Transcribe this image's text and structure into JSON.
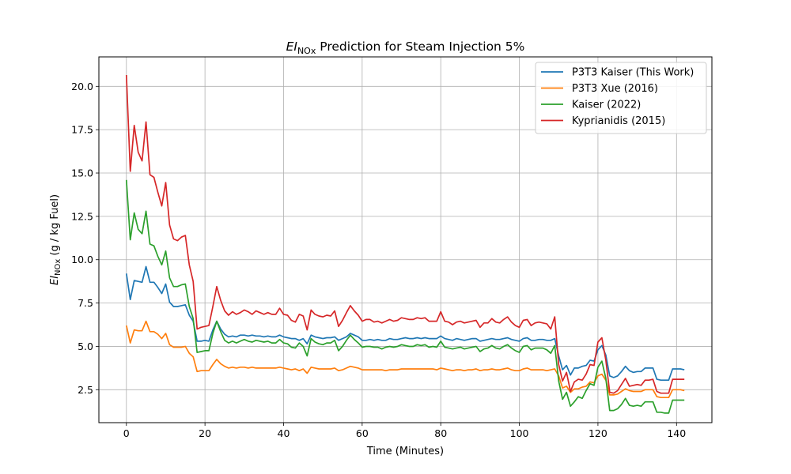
{
  "chart_data": {
    "type": "line",
    "title_prefix": "EI",
    "title_sub": "NOx",
    "title_suffix": " Prediction for Steam Injection 5%",
    "xlabel": "Time (Minutes)",
    "ylabel_prefix": "EI",
    "ylabel_sub": "NOx",
    "ylabel_suffix": " (g / kg Fuel)",
    "xlim": [
      -7,
      149
    ],
    "ylim": [
      0.6,
      21.7
    ],
    "x_ticks": [
      0,
      20,
      40,
      60,
      80,
      100,
      120,
      140
    ],
    "x_tick_labels": [
      "0",
      "20",
      "40",
      "60",
      "80",
      "100",
      "120",
      "140"
    ],
    "y_ticks": [
      2.5,
      5.0,
      7.5,
      10.0,
      12.5,
      15.0,
      17.5,
      20.0
    ],
    "y_tick_labels": [
      "2.5",
      "5.0",
      "7.5",
      "10.0",
      "12.5",
      "15.0",
      "17.5",
      "20.0"
    ],
    "grid": true,
    "legend_position": "top-right",
    "x": [
      0,
      1,
      2,
      3,
      4,
      5,
      6,
      7,
      8,
      9,
      10,
      11,
      12,
      13,
      14,
      15,
      16,
      17,
      18,
      19,
      20,
      21,
      22,
      23,
      24,
      25,
      26,
      27,
      28,
      29,
      30,
      31,
      32,
      33,
      34,
      35,
      36,
      37,
      38,
      39,
      40,
      41,
      42,
      43,
      44,
      45,
      46,
      47,
      48,
      49,
      50,
      51,
      52,
      53,
      54,
      55,
      56,
      57,
      58,
      59,
      60,
      61,
      62,
      63,
      64,
      65,
      66,
      67,
      68,
      69,
      70,
      71,
      72,
      73,
      74,
      75,
      76,
      77,
      78,
      79,
      80,
      81,
      82,
      83,
      84,
      85,
      86,
      87,
      88,
      89,
      90,
      91,
      92,
      93,
      94,
      95,
      96,
      97,
      98,
      99,
      100,
      101,
      102,
      103,
      104,
      105,
      106,
      107,
      108,
      109,
      110,
      111,
      112,
      113,
      114,
      115,
      116,
      117,
      118,
      119,
      120,
      121,
      122,
      123,
      124,
      125,
      126,
      127,
      128,
      129,
      130,
      131,
      132,
      133,
      134,
      135,
      136,
      137,
      138,
      139,
      140,
      141,
      142
    ],
    "series": [
      {
        "name": "P3T3 Kaiser (This Work)",
        "color": "#1f77b4",
        "values": [
          9.2,
          7.7,
          8.8,
          8.75,
          8.7,
          9.6,
          8.7,
          8.7,
          8.4,
          8.05,
          8.6,
          7.55,
          7.3,
          7.3,
          7.35,
          7.4,
          6.8,
          6.45,
          5.3,
          5.3,
          5.35,
          5.3,
          5.95,
          6.45,
          6.0,
          5.7,
          5.55,
          5.6,
          5.55,
          5.65,
          5.65,
          5.6,
          5.65,
          5.6,
          5.6,
          5.55,
          5.6,
          5.55,
          5.55,
          5.65,
          5.55,
          5.5,
          5.45,
          5.45,
          5.35,
          5.45,
          5.15,
          5.65,
          5.55,
          5.5,
          5.45,
          5.5,
          5.5,
          5.55,
          5.35,
          5.45,
          5.55,
          5.75,
          5.65,
          5.55,
          5.35,
          5.35,
          5.4,
          5.35,
          5.4,
          5.35,
          5.35,
          5.45,
          5.4,
          5.4,
          5.45,
          5.5,
          5.45,
          5.45,
          5.5,
          5.45,
          5.5,
          5.45,
          5.45,
          5.45,
          5.6,
          5.45,
          5.4,
          5.35,
          5.45,
          5.4,
          5.35,
          5.4,
          5.45,
          5.45,
          5.3,
          5.35,
          5.4,
          5.45,
          5.4,
          5.4,
          5.45,
          5.5,
          5.4,
          5.35,
          5.3,
          5.45,
          5.5,
          5.35,
          5.35,
          5.4,
          5.4,
          5.35,
          5.35,
          5.45,
          4.45,
          3.65,
          3.9,
          3.35,
          3.75,
          3.75,
          3.85,
          3.9,
          4.2,
          4.15,
          4.8,
          5.05,
          4.5,
          3.3,
          3.2,
          3.3,
          3.55,
          3.85,
          3.6,
          3.5,
          3.55,
          3.55,
          3.75,
          3.75,
          3.75,
          3.1,
          3.05,
          3.05,
          3.05,
          3.7,
          3.7,
          3.7,
          3.65
        ]
      },
      {
        "name": "P3T3 Xue (2016)",
        "color": "#ff7f0e",
        "values": [
          6.2,
          5.2,
          5.95,
          5.9,
          5.9,
          6.45,
          5.85,
          5.85,
          5.7,
          5.45,
          5.75,
          5.1,
          4.95,
          4.95,
          4.95,
          5.0,
          4.6,
          4.4,
          3.55,
          3.6,
          3.6,
          3.6,
          3.95,
          4.25,
          4.0,
          3.85,
          3.75,
          3.8,
          3.75,
          3.8,
          3.8,
          3.75,
          3.8,
          3.75,
          3.75,
          3.75,
          3.75,
          3.75,
          3.75,
          3.8,
          3.75,
          3.7,
          3.65,
          3.7,
          3.6,
          3.7,
          3.45,
          3.8,
          3.75,
          3.7,
          3.7,
          3.7,
          3.7,
          3.75,
          3.6,
          3.65,
          3.75,
          3.85,
          3.8,
          3.75,
          3.65,
          3.65,
          3.65,
          3.65,
          3.65,
          3.65,
          3.6,
          3.65,
          3.65,
          3.65,
          3.7,
          3.7,
          3.7,
          3.7,
          3.7,
          3.7,
          3.7,
          3.7,
          3.7,
          3.65,
          3.75,
          3.7,
          3.65,
          3.6,
          3.65,
          3.65,
          3.6,
          3.65,
          3.65,
          3.7,
          3.6,
          3.65,
          3.65,
          3.7,
          3.65,
          3.65,
          3.7,
          3.75,
          3.65,
          3.6,
          3.6,
          3.7,
          3.75,
          3.65,
          3.65,
          3.65,
          3.65,
          3.6,
          3.65,
          3.7,
          3.3,
          2.6,
          2.7,
          2.35,
          2.55,
          2.55,
          2.65,
          2.7,
          2.95,
          2.9,
          3.3,
          3.4,
          3.05,
          2.2,
          2.2,
          2.25,
          2.4,
          2.55,
          2.45,
          2.4,
          2.4,
          2.4,
          2.5,
          2.5,
          2.5,
          2.1,
          2.05,
          2.05,
          2.05,
          2.5,
          2.5,
          2.5,
          2.45
        ]
      },
      {
        "name": "Kaiser (2022)",
        "color": "#2ca02c",
        "values": [
          14.6,
          11.15,
          12.7,
          11.75,
          11.5,
          12.8,
          10.9,
          10.8,
          10.2,
          9.7,
          10.5,
          8.95,
          8.45,
          8.45,
          8.55,
          8.6,
          7.3,
          6.6,
          4.65,
          4.7,
          4.75,
          4.75,
          5.75,
          6.45,
          5.85,
          5.35,
          5.2,
          5.3,
          5.2,
          5.3,
          5.4,
          5.3,
          5.25,
          5.35,
          5.3,
          5.25,
          5.3,
          5.2,
          5.2,
          5.4,
          5.2,
          5.15,
          4.95,
          4.9,
          5.2,
          5.0,
          4.45,
          5.45,
          5.25,
          5.15,
          5.1,
          5.2,
          5.2,
          5.35,
          4.75,
          5.0,
          5.35,
          5.65,
          5.4,
          5.2,
          4.95,
          5.0,
          5.0,
          4.95,
          4.95,
          4.85,
          4.95,
          5.0,
          4.95,
          5.0,
          5.1,
          5.05,
          5.0,
          5.0,
          5.1,
          5.05,
          5.1,
          4.95,
          5.0,
          4.95,
          5.3,
          4.95,
          4.9,
          4.85,
          4.9,
          4.95,
          4.85,
          4.9,
          4.95,
          5.0,
          4.7,
          4.85,
          4.9,
          5.05,
          4.9,
          4.85,
          5.0,
          5.1,
          4.9,
          4.75,
          4.65,
          5.0,
          5.05,
          4.8,
          4.9,
          4.9,
          4.9,
          4.8,
          4.6,
          5.05,
          3.0,
          1.95,
          2.35,
          1.55,
          1.8,
          2.1,
          2.0,
          2.45,
          2.85,
          2.75,
          3.8,
          4.15,
          3.15,
          1.3,
          1.3,
          1.4,
          1.65,
          2.0,
          1.6,
          1.55,
          1.6,
          1.55,
          1.8,
          1.8,
          1.8,
          1.2,
          1.2,
          1.15,
          1.15,
          1.9,
          1.9,
          1.9,
          1.9
        ]
      },
      {
        "name": "Kyprianidis (2015)",
        "color": "#d62728",
        "values": [
          20.65,
          15.1,
          17.75,
          16.2,
          15.7,
          17.95,
          14.9,
          14.75,
          13.9,
          13.1,
          14.45,
          12.0,
          11.2,
          11.1,
          11.3,
          11.4,
          9.7,
          8.75,
          6.0,
          6.1,
          6.15,
          6.2,
          7.3,
          8.45,
          7.65,
          7.05,
          6.8,
          7.0,
          6.85,
          6.95,
          7.1,
          7.0,
          6.85,
          7.05,
          6.95,
          6.85,
          6.95,
          6.85,
          6.85,
          7.2,
          6.85,
          6.8,
          6.5,
          6.4,
          6.85,
          6.75,
          5.95,
          7.1,
          6.85,
          6.75,
          6.7,
          6.8,
          6.75,
          7.05,
          6.15,
          6.5,
          6.95,
          7.35,
          7.05,
          6.8,
          6.45,
          6.55,
          6.55,
          6.4,
          6.45,
          6.35,
          6.45,
          6.55,
          6.45,
          6.5,
          6.65,
          6.6,
          6.55,
          6.55,
          6.65,
          6.6,
          6.65,
          6.45,
          6.45,
          6.45,
          7.0,
          6.45,
          6.4,
          6.25,
          6.4,
          6.45,
          6.35,
          6.4,
          6.45,
          6.5,
          6.1,
          6.35,
          6.35,
          6.6,
          6.4,
          6.35,
          6.55,
          6.7,
          6.4,
          6.2,
          6.1,
          6.5,
          6.55,
          6.2,
          6.35,
          6.4,
          6.35,
          6.3,
          6.0,
          6.7,
          3.95,
          3.0,
          3.5,
          2.4,
          2.95,
          3.1,
          3.05,
          3.4,
          3.95,
          3.9,
          5.25,
          5.5,
          4.2,
          2.35,
          2.3,
          2.45,
          2.8,
          3.15,
          2.7,
          2.75,
          2.8,
          2.75,
          3.05,
          3.05,
          3.1,
          2.4,
          2.3,
          2.3,
          2.3,
          3.1,
          3.1,
          3.1,
          3.1
        ]
      }
    ]
  }
}
